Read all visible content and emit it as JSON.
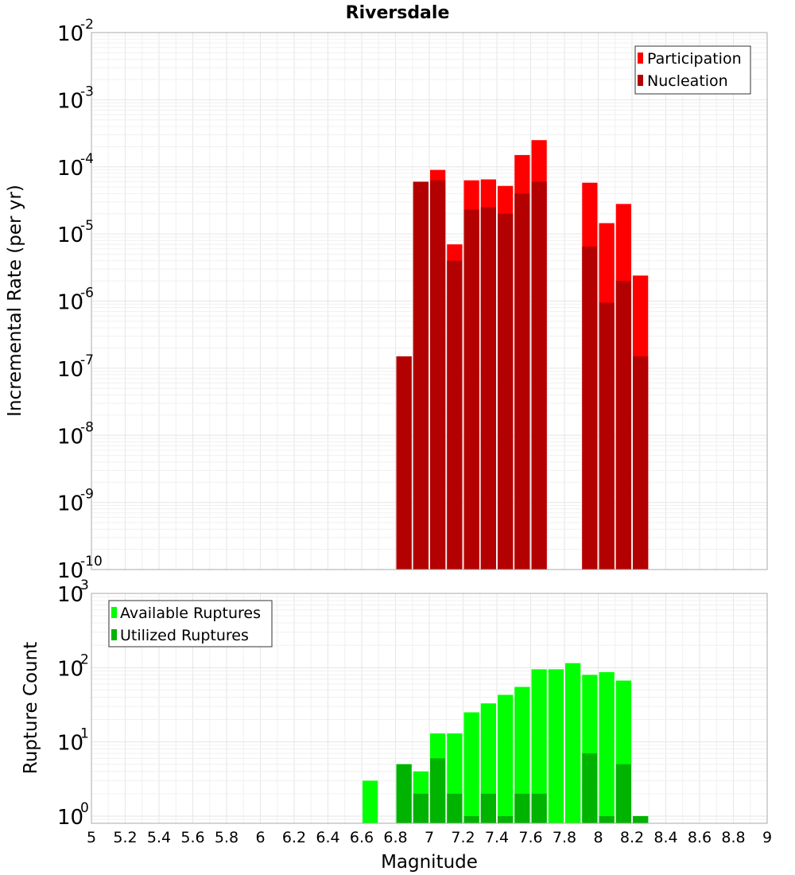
{
  "chart_data": [
    {
      "type": "bar",
      "title": "Riversdale",
      "xlabel": "",
      "ylabel": "Incremental Rate (per yr)",
      "y_scale": "log",
      "ylim": [
        1e-10,
        0.01
      ],
      "xlim": [
        5,
        9
      ],
      "bin_width": 0.1,
      "grid": true,
      "legend_position": "top-right",
      "y_tick_labels": [
        {
          "base": "10",
          "exp": "-10"
        },
        {
          "base": "10",
          "exp": "-9"
        },
        {
          "base": "10",
          "exp": "-8"
        },
        {
          "base": "10",
          "exp": "-7"
        },
        {
          "base": "10",
          "exp": "-6"
        },
        {
          "base": "10",
          "exp": "-5"
        },
        {
          "base": "10",
          "exp": "-4"
        },
        {
          "base": "10",
          "exp": "-3"
        },
        {
          "base": "10",
          "exp": "-2"
        }
      ],
      "series": [
        {
          "name": "Participation",
          "color": "#ff0000",
          "x": [
            6.85,
            6.95,
            7.05,
            7.15,
            7.25,
            7.35,
            7.45,
            7.55,
            7.65,
            7.95,
            8.05,
            8.15,
            8.25
          ],
          "values": [
            1.5e-07,
            6e-05,
            9e-05,
            7e-06,
            6.3e-05,
            6.5e-05,
            5.2e-05,
            0.00015,
            0.00025,
            5.8e-05,
            1.45e-05,
            2.8e-05,
            2.4e-06
          ]
        },
        {
          "name": "Nucleation",
          "color": "#b30000",
          "x": [
            6.85,
            6.95,
            7.05,
            7.15,
            7.25,
            7.35,
            7.45,
            7.55,
            7.65,
            7.95,
            8.05,
            8.15,
            8.25
          ],
          "values": [
            1.5e-07,
            6e-05,
            6.3e-05,
            4e-06,
            2.3e-05,
            2.5e-05,
            2e-05,
            4e-05,
            6e-05,
            6.5e-06,
            9.5e-07,
            2e-06,
            1.5e-07
          ]
        }
      ]
    },
    {
      "type": "bar",
      "title": "",
      "xlabel": "Magnitude",
      "ylabel": "Rupture Count",
      "y_scale": "log",
      "ylim": [
        0.8,
        1000
      ],
      "xlim": [
        5,
        9
      ],
      "bin_width": 0.1,
      "grid": true,
      "legend_position": "top-left",
      "x_tick_labels": [
        "5",
        "5.2",
        "5.4",
        "5.6",
        "5.8",
        "6",
        "6.2",
        "6.4",
        "6.6",
        "6.8",
        "7",
        "7.2",
        "7.4",
        "7.6",
        "7.8",
        "8",
        "8.2",
        "8.4",
        "8.6",
        "8.8",
        "9"
      ],
      "y_tick_labels": [
        {
          "base": "10",
          "exp": "0"
        },
        {
          "base": "10",
          "exp": "1"
        },
        {
          "base": "10",
          "exp": "2"
        },
        {
          "base": "10",
          "exp": "3"
        }
      ],
      "series": [
        {
          "name": "Available Ruptures",
          "color": "#00ff00",
          "x": [
            6.65,
            6.85,
            6.95,
            7.05,
            7.15,
            7.25,
            7.35,
            7.45,
            7.55,
            7.65,
            7.75,
            7.85,
            7.95,
            8.05,
            8.15,
            8.25
          ],
          "values": [
            3,
            5,
            4,
            13,
            13,
            25,
            33,
            43,
            55,
            95,
            95,
            115,
            80,
            87,
            67,
            1
          ]
        },
        {
          "name": "Utilized Ruptures",
          "color": "#00b300",
          "x": [
            6.85,
            6.95,
            7.05,
            7.15,
            7.25,
            7.35,
            7.45,
            7.55,
            7.65,
            7.75,
            7.85,
            7.95,
            8.05,
            8.15,
            8.25
          ],
          "values": [
            5,
            2,
            6,
            2,
            1,
            2,
            1,
            2,
            2,
            0,
            0,
            7,
            1,
            5,
            1
          ]
        }
      ]
    }
  ]
}
